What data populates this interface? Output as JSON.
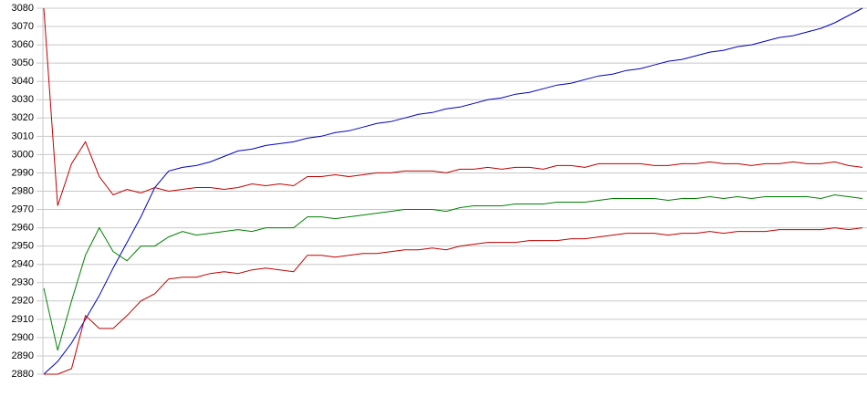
{
  "chart_data": {
    "type": "line",
    "ylim": [
      2880,
      3080
    ],
    "yticks": [
      2880,
      2890,
      2900,
      2910,
      2920,
      2930,
      2940,
      2950,
      2960,
      2970,
      2980,
      2990,
      3000,
      3010,
      3020,
      3030,
      3040,
      3050,
      3060,
      3070,
      3080
    ],
    "grid": true,
    "series": [
      {
        "color": "#0000c0",
        "values": [
          2880,
          2887,
          2897,
          2910,
          2923,
          2938,
          2952,
          2966,
          2982,
          2991,
          2993,
          2994,
          2996,
          2999,
          3002,
          3003,
          3005,
          3006,
          3007,
          3009,
          3010,
          3012,
          3013,
          3015,
          3017,
          3018,
          3020,
          3022,
          3023,
          3025,
          3026,
          3028,
          3030,
          3031,
          3033,
          3034,
          3036,
          3038,
          3039,
          3041,
          3043,
          3044,
          3046,
          3047,
          3049,
          3051,
          3052,
          3054,
          3056,
          3057,
          3059,
          3060,
          3062,
          3064,
          3065,
          3067,
          3069,
          3072,
          3076,
          3080
        ]
      },
      {
        "color": "#c00000",
        "values": [
          3080,
          2972,
          2995,
          3007,
          2988,
          2978,
          2981,
          2979,
          2982,
          2980,
          2981,
          2982,
          2982,
          2981,
          2982,
          2984,
          2983,
          2984,
          2983,
          2988,
          2988,
          2989,
          2988,
          2989,
          2990,
          2990,
          2991,
          2991,
          2991,
          2990,
          2992,
          2992,
          2993,
          2992,
          2993,
          2993,
          2992,
          2994,
          2994,
          2993,
          2995,
          2995,
          2995,
          2995,
          2994,
          2994,
          2995,
          2995,
          2996,
          2995,
          2995,
          2994,
          2995,
          2995,
          2996,
          2995,
          2995,
          2996,
          2994,
          2993
        ]
      },
      {
        "color": "#008000",
        "values": [
          2927,
          2893,
          2920,
          2945,
          2960,
          2947,
          2942,
          2950,
          2950,
          2955,
          2958,
          2956,
          2957,
          2958,
          2959,
          2958,
          2960,
          2960,
          2960,
          2966,
          2966,
          2965,
          2966,
          2967,
          2968,
          2969,
          2970,
          2970,
          2970,
          2969,
          2971,
          2972,
          2972,
          2972,
          2973,
          2973,
          2973,
          2974,
          2974,
          2974,
          2975,
          2976,
          2976,
          2976,
          2976,
          2975,
          2976,
          2976,
          2977,
          2976,
          2977,
          2976,
          2977,
          2977,
          2977,
          2977,
          2976,
          2978,
          2977,
          2976
        ]
      },
      {
        "color": "#c00000",
        "values": [
          2880,
          2880,
          2883,
          2912,
          2905,
          2905,
          2912,
          2920,
          2924,
          2932,
          2933,
          2933,
          2935,
          2936,
          2935,
          2937,
          2938,
          2937,
          2936,
          2945,
          2945,
          2944,
          2945,
          2946,
          2946,
          2947,
          2948,
          2948,
          2949,
          2948,
          2950,
          2951,
          2952,
          2952,
          2952,
          2953,
          2953,
          2953,
          2954,
          2954,
          2955,
          2956,
          2957,
          2957,
          2957,
          2956,
          2957,
          2957,
          2958,
          2957,
          2958,
          2958,
          2958,
          2959,
          2959,
          2959,
          2959,
          2960,
          2959,
          2960
        ]
      }
    ]
  }
}
